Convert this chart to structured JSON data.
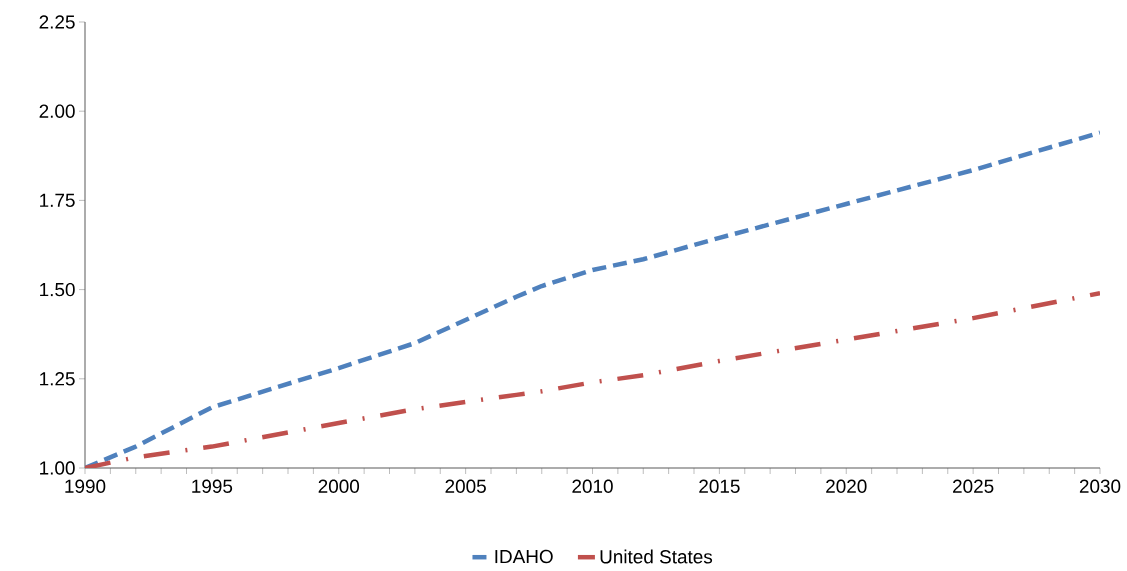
{
  "chart_data": {
    "type": "line",
    "x": [
      1990,
      1992,
      1995,
      2000,
      2003,
      2005,
      2007,
      2008,
      2010,
      2012,
      2015,
      2020,
      2025,
      2030
    ],
    "series": [
      {
        "name": "IDAHO",
        "color": "#4f81bd",
        "line_style": "dashed",
        "values": [
          1.0,
          1.06,
          1.17,
          1.28,
          1.35,
          1.415,
          1.48,
          1.51,
          1.555,
          1.585,
          1.645,
          1.74,
          1.835,
          1.94
        ]
      },
      {
        "name": "United States",
        "color": "#c0504d",
        "line_style": "dashdot",
        "values": [
          1.0,
          1.03,
          1.06,
          1.126,
          1.165,
          1.185,
          1.205,
          1.215,
          1.24,
          1.26,
          1.3,
          1.36,
          1.42,
          1.49
        ]
      }
    ],
    "xlim": [
      1990,
      2030
    ],
    "xticks": [
      1990,
      1995,
      2000,
      2005,
      2010,
      2015,
      2020,
      2025,
      2030
    ],
    "ylim": [
      1.0,
      2.25
    ],
    "yticks": [
      {
        "value": 1.0,
        "label": "1.00"
      },
      {
        "value": 1.25,
        "label": "1.25"
      },
      {
        "value": 1.5,
        "label": "1.50"
      },
      {
        "value": 1.75,
        "label": "1.75"
      },
      {
        "value": 2.0,
        "label": "2.00"
      },
      {
        "value": 2.25,
        "label": "2.25"
      }
    ],
    "grid": false,
    "legend": "bottom",
    "marker": "none"
  }
}
